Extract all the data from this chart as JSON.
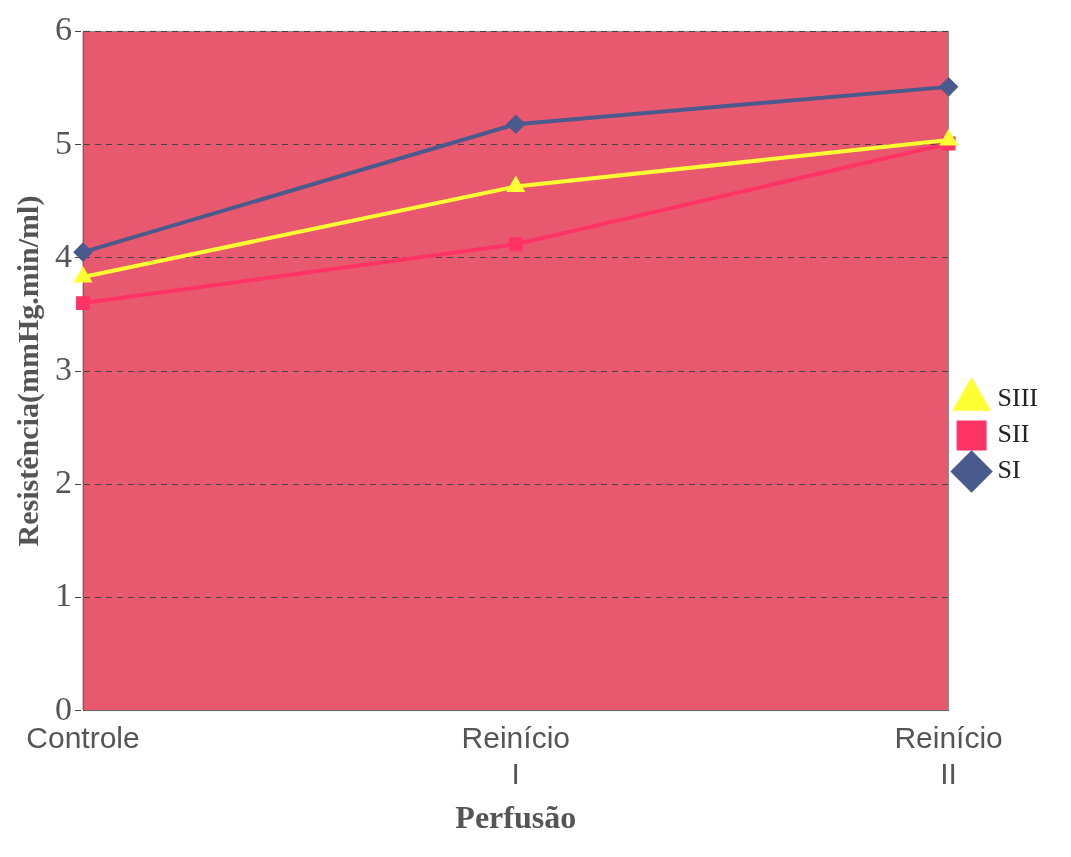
{
  "chart_data": {
    "type": "line",
    "xlabel": "Perfusão",
    "ylabel": "Resistência(mmHg.min/ml)",
    "categories": [
      "Controle",
      "Reinício I",
      "Reinício II"
    ],
    "series": [
      {
        "name": "SI",
        "color": "#4a5a8c",
        "values": [
          4.05,
          5.18,
          5.51
        ],
        "marker": "diamond"
      },
      {
        "name": "SII",
        "color": "#ff3366",
        "values": [
          3.6,
          4.12,
          5.01
        ],
        "marker": "square"
      },
      {
        "name": "SIII",
        "color": "#ffff33",
        "values": [
          3.83,
          4.63,
          5.04
        ],
        "marker": "triangle"
      }
    ],
    "ylim": [
      0,
      6
    ],
    "yticks": [
      0,
      1,
      2,
      3,
      4,
      5,
      6
    ],
    "grid": "y",
    "legend": "right",
    "line_style": "solid"
  }
}
